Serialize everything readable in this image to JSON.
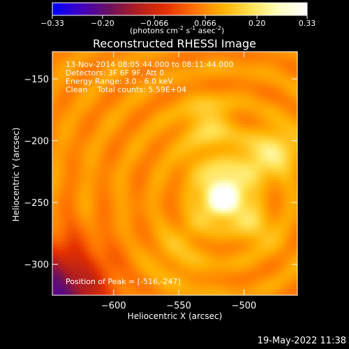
{
  "chart_data": {
    "type": "heatmap",
    "title": "Reconstructed RHESSI Image",
    "colorbar": {
      "ticks": [
        "-0.33",
        "-0.20",
        "-0.066",
        "0.066",
        "0.20",
        "0.33"
      ],
      "range": [
        -0.33,
        0.33
      ],
      "label_main": "(photons cm",
      "label_sup1": "-2",
      "label_mid1": " s",
      "label_sup2": "-1",
      "label_mid2": " asec",
      "label_sup3": "-2",
      "label_end": ")",
      "colormap": [
        "#0000ff",
        "#4000c0",
        "#6a1060",
        "#b01e20",
        "#e33000",
        "#ff7000",
        "#ffb000",
        "#ffe050",
        "#ffffc0",
        "#ffffff"
      ]
    },
    "xlabel": "Heliocentric X (arcsec)",
    "ylabel": "Heliocentric Y (arcsec)",
    "xlim": [
      -647,
      -459
    ],
    "ylim": [
      -325,
      -128
    ],
    "xticks": [
      -600,
      -550,
      -500
    ],
    "yticks": [
      -150,
      -200,
      -250,
      -300
    ],
    "xtick_labels": [
      "−600",
      "−550",
      "−500"
    ],
    "ytick_labels": [
      "−150",
      "−200",
      "−250",
      "−300"
    ],
    "peak": {
      "x": -516,
      "y": -247,
      "value": 0.33
    },
    "annotations": {
      "time": "13-Nov-2014 08:05:44.000 to 08:11:44.000",
      "detectors": "Detectors: 3F 6F 9F, Att 0",
      "energy": "Energy Range: 3.0 - 6.0 keV",
      "clean": "Clean    Total counts: 5.59E+04",
      "peak_text": "Position of Peak = [-516,-247]"
    }
  },
  "footer_timestamp": "19-May-2022 11:38"
}
